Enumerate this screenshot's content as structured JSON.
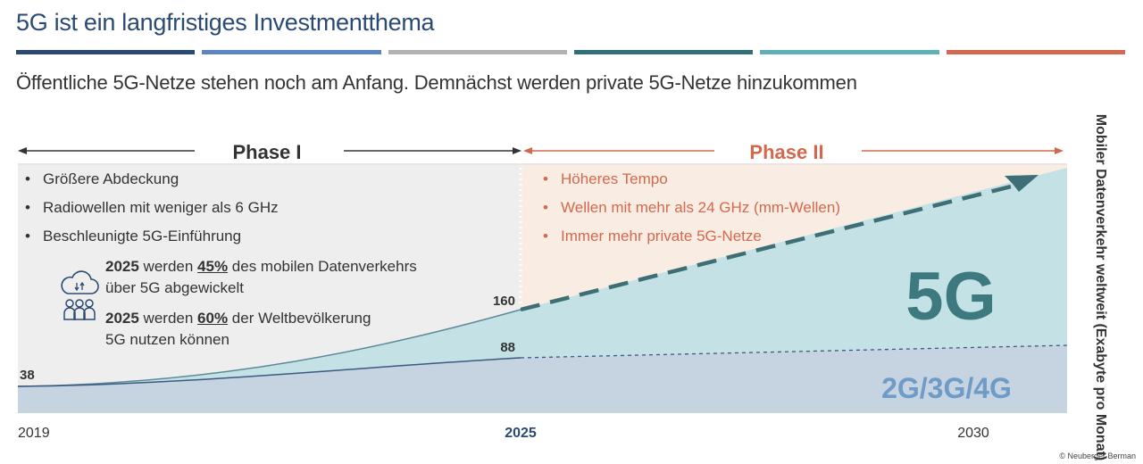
{
  "title": "5G ist ein langfristiges Investmentthema",
  "subtitle": "Öffentliche 5G-Netze stehen noch am Anfang. Demnächst werden private 5G-Netze hinzukommen",
  "stripe_colors": [
    "#2b4a73",
    "#5b86c4",
    "#b2b2b2",
    "#2f6f77",
    "#5fb0b8",
    "#d2694e"
  ],
  "phase1": {
    "label": "Phase I",
    "bullets": [
      "Größere Abdeckung",
      "Radiowellen mit weniger als 6 GHz",
      "Beschleunigte 5G-Einführung"
    ],
    "stat1": {
      "year": "2025",
      "mid": " werden ",
      "percent": "45%",
      "rest": " des mobilen Datenverkehrs",
      "line2": "über 5G abgewickelt"
    },
    "stat2": {
      "year": "2025",
      "mid": " werden ",
      "percent": "60%",
      "rest": " der Weltbevölkerung",
      "line2": "5G nutzen können"
    }
  },
  "phase2": {
    "label": "Phase II",
    "bullets": [
      "Höheres Tempo",
      "Wellen mit mehr als 24 GHz (mm-Wellen)",
      "Immer mehr private 5G-Netze"
    ]
  },
  "icons": [
    "cloud-data-icon",
    "people-group-icon"
  ],
  "copyright": "© Neuberger Berman",
  "colors": {
    "phase1_text": "#333333",
    "phase2_text": "#d2694e",
    "fiveg_area": "#c4e2e6",
    "legacy_area": "#c6d3e1",
    "fiveg_label": "#3d7a80",
    "legacy_label": "#6f9bc7"
  },
  "chart_data": {
    "type": "area",
    "ylabel": "Mobiler Datenverkehr weltweit (Exabyte pro Monat)",
    "x_ticks": [
      "2019",
      "2025",
      "2030"
    ],
    "series": [
      {
        "name": "2G/3G/4G",
        "start_label": "38",
        "end_label": "88",
        "x": [
          2019,
          2025
        ],
        "y": [
          38,
          88
        ],
        "forecast": "dashed"
      },
      {
        "name": "5G",
        "start_label": "38",
        "end_label": "160",
        "x": [
          2019,
          2025
        ],
        "y": [
          38,
          160
        ],
        "forecast": "dashed-arrow"
      }
    ]
  }
}
